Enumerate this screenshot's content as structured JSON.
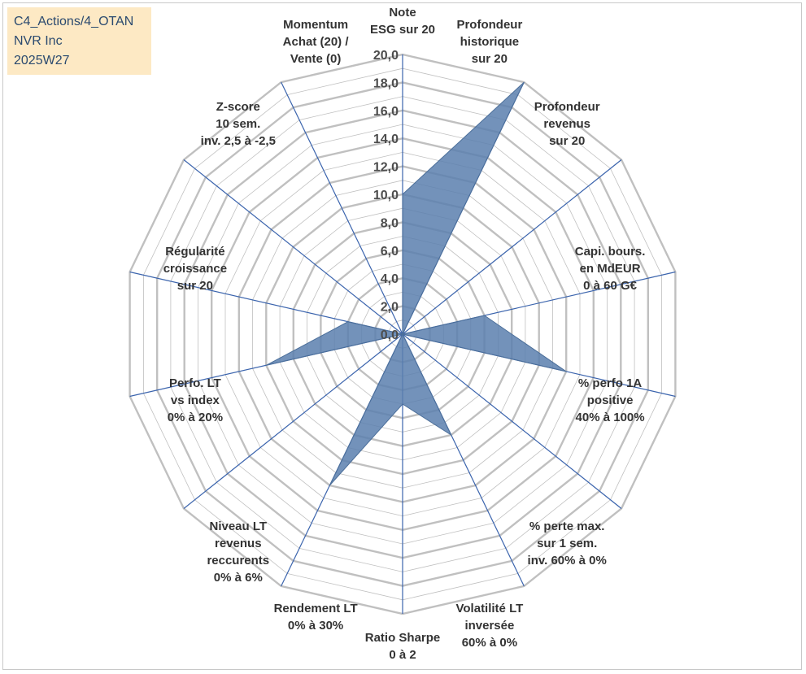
{
  "info_box": {
    "line1": "C4_Actions/4_OTAN",
    "line2": "NVR Inc",
    "line3": "2025W27"
  },
  "colors": {
    "ring": "#c0c0c0",
    "spoke": "#3b64ad",
    "fill": "#5a7fae",
    "stroke": "#4c6f9a",
    "info_bg": "#fde9c4",
    "info_text": "#2b4a6f"
  },
  "chart_data": {
    "type": "radar",
    "rmin": 0,
    "rmax": 20,
    "tick_step": 2,
    "major_tick_step": 2,
    "minor_ring_step": 1,
    "tick_labels": [
      "0,0",
      "2,0",
      "4,0",
      "6,0",
      "8,0",
      "10,0",
      "12,0",
      "14,0",
      "16,0",
      "18,0",
      "20,0"
    ],
    "categories": [
      [
        "Note",
        "ESG sur 20"
      ],
      [
        "Profondeur",
        "historique",
        "sur 20"
      ],
      [
        "Profondeur",
        "revenus",
        "sur 20"
      ],
      [
        "Capi. bours.",
        "en MdEUR",
        "0 à 60 G€"
      ],
      [
        "% perfo 1A",
        "positive",
        "40% à 100%"
      ],
      [
        "% perte max.",
        "sur 1 sem.",
        "inv. 60% à 0%"
      ],
      [
        "Volatilité LT",
        "inversée",
        "60% à 0%"
      ],
      [
        "Ratio Sharpe",
        "0 à 2"
      ],
      [
        "Rendement LT",
        "0% à 30%"
      ],
      [
        "Niveau LT",
        "revenus",
        "reccurents",
        "0% à 6%"
      ],
      [
        "Perfo. LT",
        "vs index",
        "0% à 20%"
      ],
      [
        "Régularité",
        "croissance",
        "sur 20"
      ],
      [
        "Z-score",
        "10 sem.",
        "inv. 2,5 à -2,5"
      ],
      [
        "Momentum",
        "Achat (20) /",
        "Vente (0)"
      ]
    ],
    "series": [
      {
        "values": [
          10,
          20,
          0,
          6,
          12,
          0,
          8,
          5,
          12,
          0,
          10,
          4,
          0,
          0
        ]
      }
    ],
    "grid": true,
    "legend": "none"
  }
}
